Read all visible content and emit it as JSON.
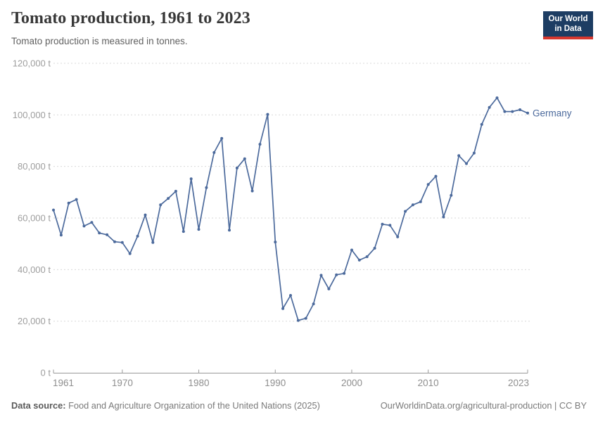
{
  "header": {
    "title": "Tomato production, 1961 to 2023",
    "subtitle": "Tomato production is measured in tonnes."
  },
  "logo": {
    "line1": "Our World",
    "line2": "in Data"
  },
  "chart_data": {
    "type": "line",
    "title": "Tomato production, 1961 to 2023",
    "unit": "tonnes",
    "xlabel": "",
    "ylabel": "",
    "xlim": [
      1961,
      2023
    ],
    "ylim": [
      0,
      120000
    ],
    "grid": "horizontal-dashed",
    "legend_position": "end-of-line",
    "x_tick_years": [
      1961,
      1970,
      1980,
      1990,
      2000,
      2010,
      2023
    ],
    "x_tick_labels": [
      "1961",
      "1970",
      "1980",
      "1990",
      "2000",
      "2010",
      "2023"
    ],
    "y_tick_values": [
      0,
      20000,
      40000,
      60000,
      80000,
      100000,
      120000
    ],
    "y_tick_labels": [
      "0 t",
      "20,000 t",
      "40,000 t",
      "60,000 t",
      "80,000 t",
      "100,000 t",
      "120,000 t"
    ],
    "series": [
      {
        "name": "Germany",
        "color": "#4C6A9C",
        "years": [
          1961,
          1962,
          1963,
          1964,
          1965,
          1966,
          1967,
          1968,
          1969,
          1970,
          1971,
          1972,
          1973,
          1974,
          1975,
          1976,
          1977,
          1978,
          1979,
          1980,
          1981,
          1982,
          1983,
          1984,
          1985,
          1986,
          1987,
          1988,
          1989,
          1990,
          1991,
          1992,
          1993,
          1994,
          1995,
          1996,
          1997,
          1998,
          1999,
          2000,
          2001,
          2002,
          2003,
          2004,
          2005,
          2006,
          2007,
          2008,
          2009,
          2010,
          2011,
          2012,
          2013,
          2014,
          2015,
          2016,
          2017,
          2018,
          2019,
          2020,
          2021,
          2022,
          2023
        ],
        "values": [
          63100,
          53400,
          65800,
          67200,
          56900,
          58300,
          54200,
          53500,
          50800,
          50500,
          46200,
          53000,
          61200,
          50500,
          65100,
          67600,
          70400,
          54800,
          75200,
          55600,
          71800,
          85400,
          90900,
          55300,
          79400,
          83000,
          70500,
          88600,
          100200,
          50700,
          24900,
          30000,
          20300,
          21100,
          26700,
          37800,
          32500,
          38000,
          38500,
          47600,
          43700,
          45000,
          48300,
          57600,
          57200,
          52700,
          62600,
          65100,
          66300,
          73000,
          76200,
          60400,
          68800,
          84200,
          81100,
          85200,
          96300,
          102900,
          106600,
          101300,
          101300,
          102000,
          100700
        ]
      }
    ]
  },
  "footer": {
    "source_label": "Data source:",
    "source_text": " Food and Agriculture Organization of the United Nations (2025)",
    "link_text": "OurWorldinData.org/agricultural-production | CC BY"
  },
  "colors": {
    "line": "#4C6A9C",
    "grid": "#dadada",
    "axis": "#999999",
    "logo_bg": "#1d3d63",
    "logo_bar": "#d7382f"
  }
}
